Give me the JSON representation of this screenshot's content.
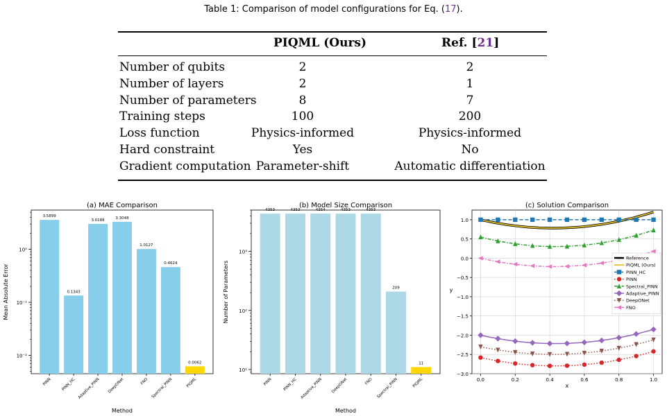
{
  "caption": {
    "text": "Table 1: Comparison of model configurations for Eq. (",
    "ref": "17",
    "end": ")."
  },
  "table": {
    "headers": {
      "col1": "",
      "col2": "PIQML (Ours)",
      "col3_prefix": "Ref. [",
      "col3_ref": "21",
      "col3_suffix": "]"
    },
    "rows": [
      {
        "label": "Number of qubits",
        "ours": "2",
        "ref": "2"
      },
      {
        "label": "Number of layers",
        "ours": "2",
        "ref": "1"
      },
      {
        "label": "Number of parameters",
        "ours": "8",
        "ref": "7"
      },
      {
        "label": "Training steps",
        "ours": "100",
        "ref": "200"
      },
      {
        "label": "Loss function",
        "ours": "Physics-informed",
        "ref": "Physics-informed"
      },
      {
        "label": "Hard constraint",
        "ours": "Yes",
        "ref": "No"
      },
      {
        "label": "Gradient computation",
        "ours": "Parameter-shift",
        "ref": "Automatic differentiation"
      }
    ]
  },
  "chart_data": [
    {
      "type": "bar",
      "title": "(a) MAE Comparison",
      "xlabel": "Method",
      "ylabel": "Mean Absolute Error",
      "yscale": "log",
      "ylim": [
        0.0045,
        5.5
      ],
      "yticks": [
        "10⁻²",
        "10⁻¹",
        "10⁰"
      ],
      "categories": [
        "PINN",
        "PINN_HC",
        "Adaptive_PINN",
        "DeepONet",
        "FNO",
        "Spectral_PINN",
        "PIQML"
      ],
      "values": [
        3.5899,
        0.1343,
        3.0188,
        3.3048,
        1.0127,
        0.4624,
        0.0062
      ],
      "labels": [
        "3.5899",
        "0.1343",
        "3.0188",
        "3.3048",
        "1.0127",
        "0.4624",
        "0.0062"
      ],
      "colors": [
        "#87ceeb",
        "#87ceeb",
        "#87ceeb",
        "#87ceeb",
        "#87ceeb",
        "#87ceeb",
        "#ffd700"
      ]
    },
    {
      "type": "bar",
      "title": "(b) Model Size Comparison",
      "xlabel": "Method",
      "ylabel": "Number of Parameters",
      "yscale": "log",
      "ylim": [
        8.5,
        5000
      ],
      "yticks": [
        "10¹",
        "10²",
        "10³"
      ],
      "categories": [
        "PINN",
        "PINN_HC",
        "Adaptive_PINN",
        "DeepONet",
        "FNO",
        "Spectral_PINN",
        "PIQML"
      ],
      "values": [
        4353,
        4353,
        4354,
        4353,
        4353,
        209,
        11
      ],
      "labels": [
        "4353",
        "4353",
        "4354",
        "4353",
        "4353",
        "209",
        "11"
      ],
      "colors": [
        "#add8e6",
        "#add8e6",
        "#add8e6",
        "#add8e6",
        "#add8e6",
        "#add8e6",
        "#ffd700"
      ]
    },
    {
      "type": "line",
      "title": "(c) Solution Comparison",
      "xlabel": "x",
      "ylabel": "y",
      "xlim": [
        -0.05,
        1.05
      ],
      "ylim": [
        -3.0,
        1.25
      ],
      "xticks": [
        "0.0",
        "0.2",
        "0.4",
        "0.6",
        "0.8",
        "1.0"
      ],
      "yticks": [
        "−3.0",
        "−2.5",
        "−2.0",
        "−1.5",
        "−1.0",
        "−0.5",
        "0.0",
        "0.5",
        "1.0"
      ],
      "grid": true,
      "legend": "center-right",
      "series": [
        {
          "name": "Reference",
          "color": "#000000",
          "marker": "none",
          "dash": "solid",
          "width": 3.5,
          "y0": 1.0,
          "ymin": 0.78,
          "y1": 1.2
        },
        {
          "name": "PIQML (Ours)",
          "color": "#e6c229",
          "marker": "none",
          "dash": "solid",
          "width": 1.8,
          "y0": 1.0,
          "ymin": 0.78,
          "y1": 1.2
        },
        {
          "name": "PINN_HC",
          "color": "#1f77b4",
          "marker": "square",
          "dash": "dash",
          "width": 1.5,
          "y0": 1.0,
          "ymin": 1.0,
          "y1": 1.0
        },
        {
          "name": "PINN",
          "color": "#d62728",
          "marker": "circle",
          "dash": "dot",
          "width": 1.5,
          "y0": -2.58,
          "ymin": -2.8,
          "y1": -2.42
        },
        {
          "name": "Spectral_PINN",
          "color": "#2ca02c",
          "marker": "triangle-up",
          "dash": "dashdot",
          "width": 1.5,
          "y0": 0.55,
          "ymin": 0.3,
          "y1": 0.73
        },
        {
          "name": "Adaptive_PINN",
          "color": "#9467bd",
          "marker": "diamond",
          "dash": "solid",
          "width": 1.5,
          "y0": -2.0,
          "ymin": -2.22,
          "y1": -1.85
        },
        {
          "name": "DeepONet",
          "color": "#8c564b",
          "marker": "triangle-down",
          "dash": "dot",
          "width": 1.5,
          "y0": -2.3,
          "ymin": -2.5,
          "y1": -2.12
        },
        {
          "name": "FNO",
          "color": "#e377c2",
          "marker": "triangle-left",
          "dash": "dashdot",
          "width": 1.5,
          "y0": 0.0,
          "ymin": -0.22,
          "y1": 0.18
        }
      ]
    }
  ]
}
